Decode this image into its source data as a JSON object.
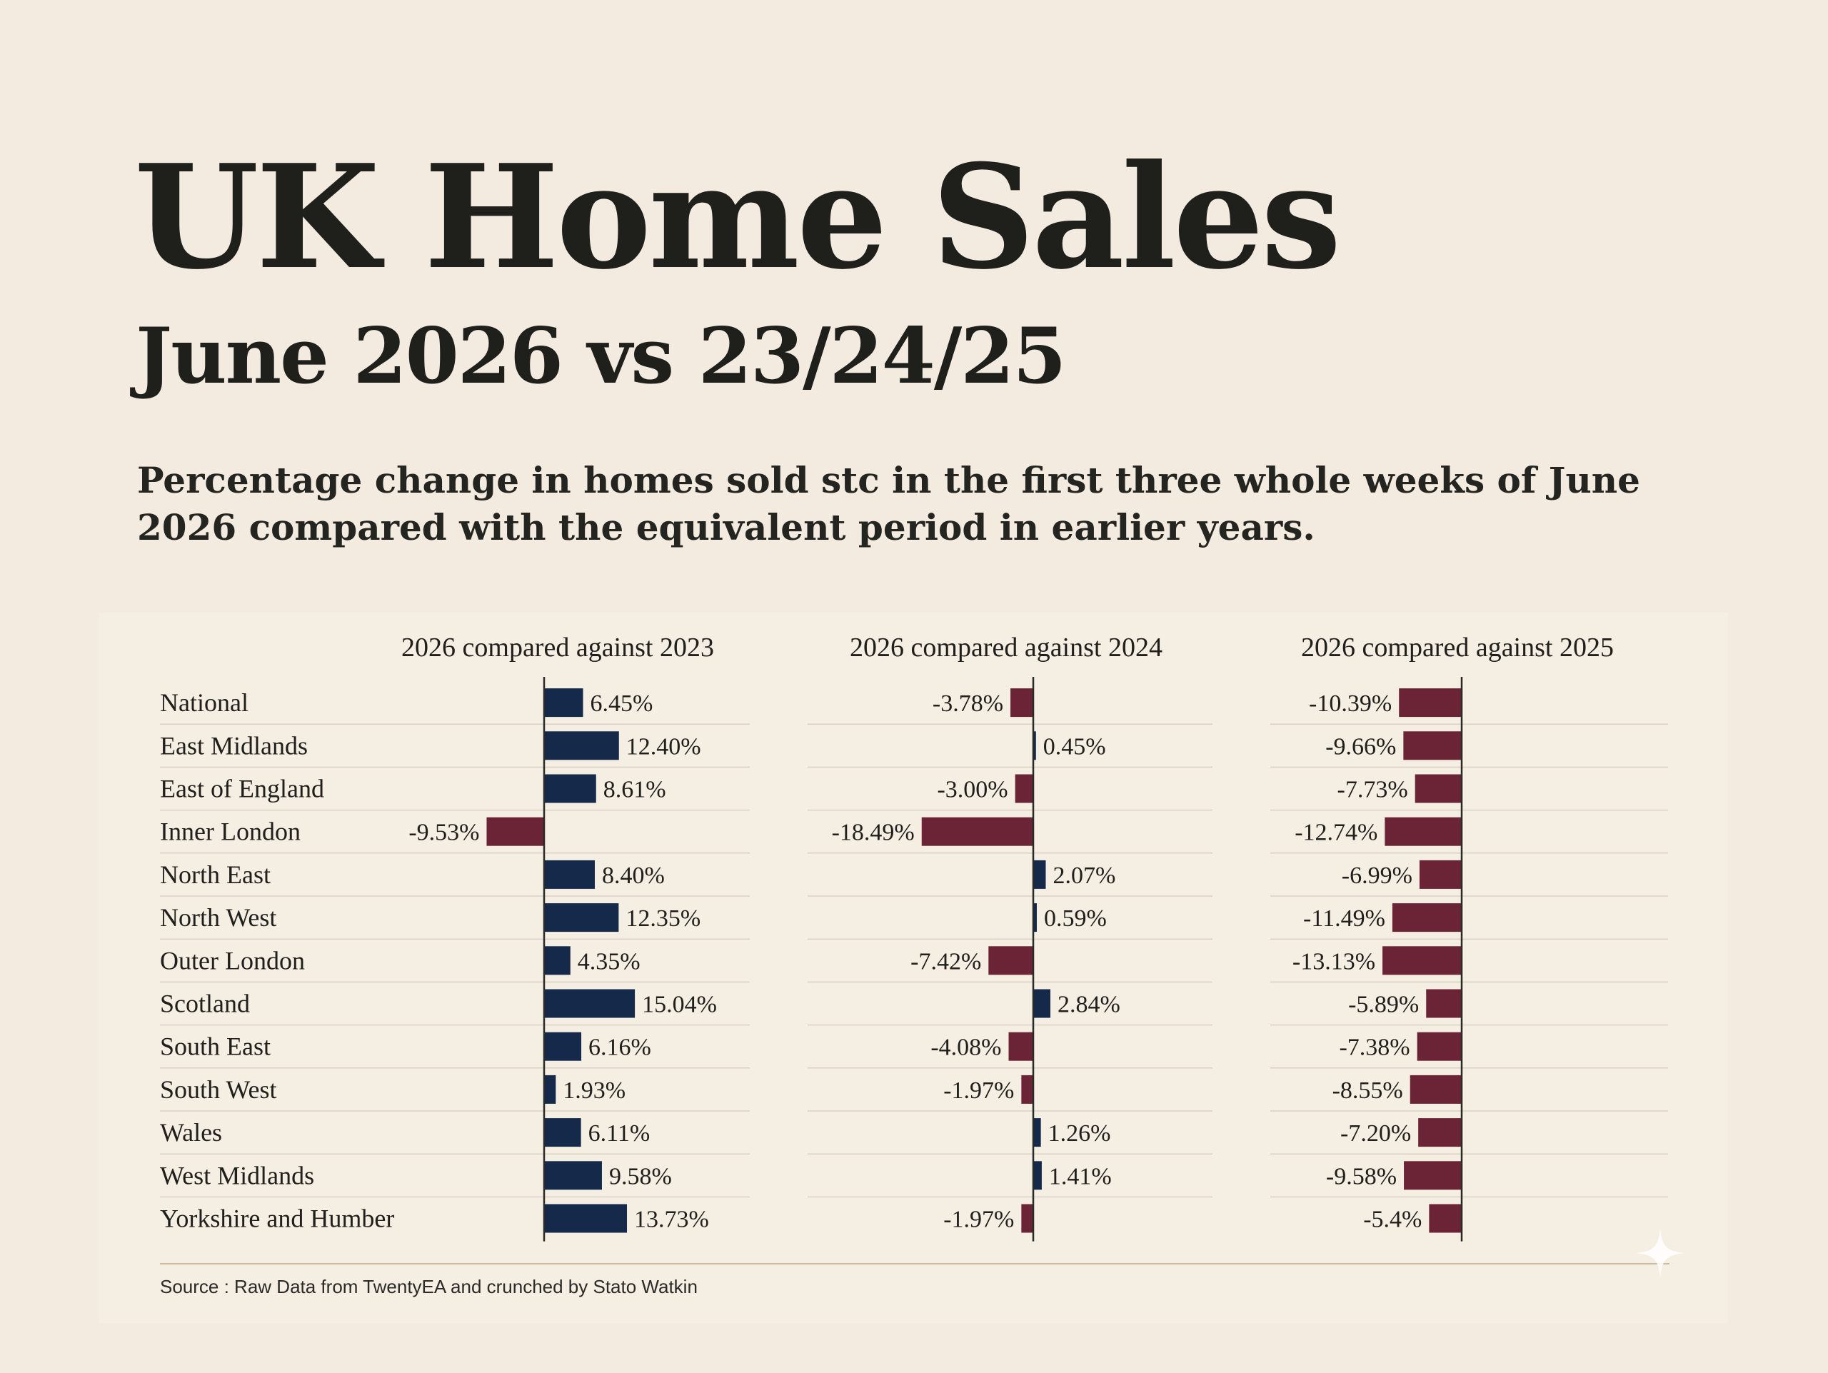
{
  "header": {
    "title": "UK Home Sales",
    "subtitle": "June 2026 vs 23/24/25",
    "description": "Percentage change in homes sold stc in the first three whole weeks of June 2026 compared with the equivalent period in earlier years."
  },
  "footer": {
    "source": "Source : Raw Data from TwentyEA and crunched by Stato Watkin"
  },
  "colors": {
    "positive": "#15294a",
    "negative": "#6a2436",
    "background": "#f3ebdf",
    "text": "#1f1f1c"
  },
  "icons": {
    "corner_mark": "sparkle-icon"
  },
  "chart_data": {
    "type": "bar",
    "orientation": "horizontal",
    "categories": [
      "National",
      "East Midlands",
      "East of England",
      "Inner London",
      "North East",
      "North West",
      "Outer London",
      "Scotland",
      "South East",
      "South West",
      "Wales",
      "West Midlands",
      "Yorkshire and Humber"
    ],
    "series": [
      {
        "name": "2026 compared against 2023",
        "values": [
          6.45,
          12.4,
          8.61,
          -9.53,
          8.4,
          12.35,
          4.35,
          15.04,
          6.16,
          1.93,
          6.11,
          9.58,
          13.73
        ],
        "labels": [
          "6.45%",
          "12.40%",
          "8.61%",
          "-9.53%",
          "8.40%",
          "12.35%",
          "4.35%",
          "15.04%",
          "6.16%",
          "1.93%",
          "6.11%",
          "9.58%",
          "13.73%"
        ]
      },
      {
        "name": "2026 compared against 2024",
        "values": [
          -3.78,
          0.45,
          -3.0,
          -18.49,
          2.07,
          0.59,
          -7.42,
          2.84,
          -4.08,
          -1.97,
          1.26,
          1.41,
          -1.97
        ],
        "labels": [
          "-3.78%",
          "0.45%",
          "-3.00%",
          "-18.49%",
          "2.07%",
          "0.59%",
          "-7.42%",
          "2.84%",
          "-4.08%",
          "-1.97%",
          "1.26%",
          "1.41%",
          "-1.97%"
        ]
      },
      {
        "name": "2026 compared against 2025",
        "values": [
          -10.39,
          -9.66,
          -7.73,
          -12.74,
          -6.99,
          -11.49,
          -13.13,
          -5.89,
          -7.38,
          -8.55,
          -7.2,
          -9.58,
          -5.4
        ],
        "labels": [
          "-10.39%",
          "-9.66%",
          "-7.73%",
          "-12.74%",
          "-6.99%",
          "-11.49%",
          "-13.13%",
          "-5.89%",
          "-7.38%",
          "-8.55%",
          "-7.20%",
          "-9.58%",
          "-5.4%"
        ]
      }
    ],
    "xlabel": "",
    "ylabel": "",
    "grid": false,
    "legend": "none"
  }
}
